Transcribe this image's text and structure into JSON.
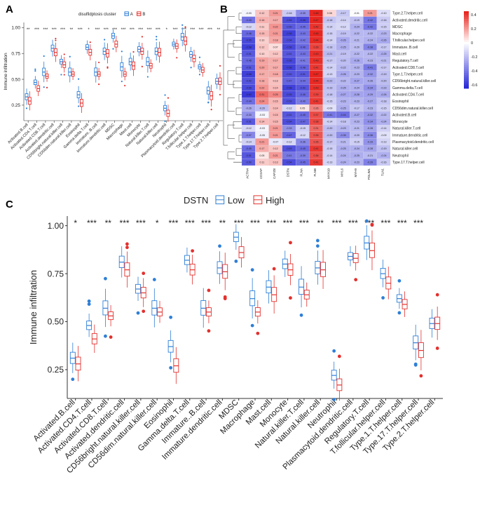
{
  "panels": {
    "a": {
      "letter": "A"
    },
    "b": {
      "letter": "B"
    },
    "c": {
      "letter": "C"
    }
  },
  "colors": {
    "blue": "#2f7fd6",
    "red": "#e2312e",
    "heat_low": "#2929d6",
    "heat_mid": "#ffffff",
    "heat_high": "#e8251f"
  },
  "chart_data": [
    {
      "type": "box",
      "panel": "A",
      "legend_title": "disulfidptosis cluster",
      "groups": [
        "A",
        "B"
      ],
      "ylabel": "Immune infiltration",
      "ylim": [
        0.1,
        1.05
      ],
      "yticks": [
        "0.25",
        "0.50",
        "0.75",
        "1.00"
      ],
      "categories": [
        "Activated.B.cell",
        "Activated.CD4.T.cell",
        "Activated.CD8.T.cell",
        "Activated.dendritic.cell",
        "CD56bright.natural.killer.cell",
        "CD56dim.natural.killer.cell",
        "Eosinophil",
        "Gamma.delta.T.cell",
        "Immature..B.cell",
        "Immature.dendritic.cell",
        "MDSC",
        "Macrophage",
        "Mast.cell",
        "Monocyte",
        "Natural.killer.T.cell",
        "Natural.killer.cell",
        "Neutrophil",
        "Plasmacytoid.dendritic.cell",
        "Regulatory.T.cell",
        "T.follicular.helper.cell",
        "Type.1.T.helper.cell",
        "Type.17.T.helper.cell",
        "Type.2.T.helper.cell"
      ],
      "significance": [
        "**",
        "***",
        "***",
        "***",
        "***",
        "**",
        "***",
        "*",
        "***",
        "***",
        "***",
        "***",
        "***",
        "***",
        "***",
        "***",
        "*",
        "***",
        "***",
        "***",
        "***",
        "***",
        "**"
      ],
      "series": [
        {
          "name": "A",
          "medians": [
            0.33,
            0.47,
            0.57,
            0.8,
            0.67,
            0.57,
            0.35,
            0.81,
            0.57,
            0.77,
            0.92,
            0.62,
            0.67,
            0.79,
            0.67,
            0.77,
            0.22,
            0.84,
            0.91,
            0.74,
            0.62,
            0.39,
            0.48
          ]
        },
        {
          "name": "B",
          "medians": [
            0.29,
            0.41,
            0.53,
            0.76,
            0.64,
            0.55,
            0.27,
            0.76,
            0.55,
            0.75,
            0.84,
            0.55,
            0.63,
            0.77,
            0.63,
            0.76,
            0.17,
            0.82,
            0.87,
            0.7,
            0.59,
            0.34,
            0.48
          ]
        }
      ]
    },
    {
      "type": "heatmap",
      "panel": "B",
      "x": [
        "ACTN4",
        "CD2AP",
        "CAPZB",
        "DSTN",
        "FLNA",
        "FLNB",
        "MYH10",
        "MYL6",
        "MYH9",
        "PDLIM1",
        "TLN1"
      ],
      "y": [
        "Type.2.T.helper.cell",
        "Activated.dendritic.cell",
        "MDSC",
        "Macrophage",
        "T.follicular.helper.cell",
        "Immature..B.cell",
        "Mast.cell",
        "Regulatory.T.cell",
        "Activated.CD8.T.cell",
        "Type.1.T.helper.cell",
        "CD56bright.natural.killer.cell",
        "Gamma.delta.T.cell",
        "Activated.CD4.T.cell",
        "Eosinophil",
        "CD56dim.natural.killer.cell",
        "Activated.B.cell",
        "Monocyte",
        "Natural.killer.T.cell",
        "Immature.dendritic.cell",
        "Plasmacytoid.dendritic.cell",
        "Natural.killer.cell",
        "Neutrophil",
        "Type.17.T.helper.cell"
      ],
      "values": [
        [
          -0.03,
          0.12,
          0.21,
          -0.16,
          -0.35,
          0.46,
          0.08,
          -0.17,
          -0.01,
          0.21,
          -0.1
        ],
        [
          -0.43,
          0.16,
          0.17,
          -0.54,
          -0.56,
          0.47,
          -0.18,
          -0.14,
          -0.19,
          -0.42,
          -0.16
        ],
        [
          -0.12,
          0.11,
          0.22,
          -0.5,
          -0.45,
          0.42,
          -0.14,
          -0.12,
          -0.24,
          -0.42,
          -0.15
        ],
        [
          -0.46,
          0.15,
          0.21,
          -0.58,
          -0.43,
          0.45,
          -0.15,
          -0.19,
          -0.22,
          -0.22,
          -0.23
        ],
        [
          -0.55,
          0.1,
          0.18,
          -0.54,
          -0.42,
          0.44,
          -0.14,
          -0.26,
          -0.21,
          -0.24,
          -0.26
        ],
        [
          -0.58,
          0.12,
          0.07,
          -0.56,
          -0.46,
          0.39,
          -0.18,
          -0.25,
          -0.2,
          -0.38,
          -0.17
        ],
        [
          -0.51,
          0.1,
          0.12,
          -0.51,
          -0.43,
          0.43,
          -0.21,
          -0.19,
          -0.22,
          -0.22,
          -0.25
        ],
        [
          -0.46,
          0.19,
          0.17,
          -0.56,
          -0.41,
          0.43,
          -0.17,
          -0.2,
          -0.26,
          -0.23,
          -0.21
        ],
        [
          -0.51,
          0.2,
          0.17,
          -0.58,
          -0.48,
          0.41,
          -0.14,
          -0.22,
          -0.23,
          -0.41,
          -0.17
        ],
        [
          -0.58,
          0.17,
          0.18,
          -0.52,
          -0.51,
          0.47,
          -0.13,
          -0.26,
          -0.23,
          -0.32,
          -0.19
        ],
        [
          -0.52,
          0.18,
          0.13,
          -0.47,
          -0.44,
          0.44,
          -0.22,
          -0.22,
          -0.27,
          -0.26,
          -0.2
        ],
        [
          -0.55,
          0.22,
          0.14,
          -0.58,
          -0.52,
          0.43,
          -0.19,
          -0.25,
          -0.24,
          -0.34,
          -0.23
        ],
        [
          -0.6,
          0.31,
          0.25,
          -0.55,
          -0.46,
          0.39,
          -0.18,
          -0.27,
          -0.28,
          -0.29,
          -0.26
        ],
        [
          -0.44,
          0.24,
          0.15,
          -0.53,
          -0.4,
          0.41,
          -0.15,
          -0.23,
          -0.23,
          -0.27,
          -0.18
        ],
        [
          -0.26,
          -0.2,
          0.14,
          -0.12,
          0.05,
          0.26,
          -0.09,
          -0.25,
          -0.17,
          -0.23,
          -0.15
        ],
        [
          -0.33,
          -0.03,
          0.15,
          -0.51,
          -0.45,
          0.37,
          -0.41,
          -0.44,
          -0.27,
          -0.32,
          -0.22
        ],
        [
          -0.51,
          0.14,
          0.15,
          -0.54,
          -0.47,
          0.38,
          -0.14,
          -0.18,
          -0.23,
          -0.34,
          -0.24
        ],
        [
          -0.12,
          -0.03,
          0.21,
          -0.33,
          -0.15,
          0.31,
          -0.2,
          -0.23,
          -0.21,
          -0.28,
          -0.14
        ],
        [
          -0.37,
          -0.05,
          0.21,
          -0.47,
          -0.12,
          0.35,
          -0.2,
          -0.35,
          -0.2,
          -0.36,
          -0.09
        ],
        [
          -0.14,
          0.21,
          -0.07,
          -0.12,
          -0.36,
          0.35,
          -0.17,
          -0.21,
          -0.15,
          -0.33,
          -0.13
        ],
        [
          -0.45,
          0.17,
          0.12,
          -0.53,
          -0.45,
          0.41,
          -0.15,
          -0.25,
          -0.24,
          -0.28,
          -0.19
        ],
        [
          -0.51,
          0.05,
          0.21,
          -0.41,
          -0.39,
          0.36,
          -0.14,
          -0.24,
          -0.25,
          -0.21,
          -0.24
        ],
        [
          -0.5,
          0.11,
          0.13,
          -0.54,
          -0.45,
          0.41,
          -0.13,
          -0.24,
          -0.23,
          -0.39,
          -0.16
        ]
      ],
      "colorbar_ticks": [
        "0.4",
        "0.2",
        "0",
        "-0.2",
        "-0.4",
        "-0.6"
      ],
      "colorbar_range": [
        -0.65,
        0.45
      ]
    },
    {
      "type": "box",
      "panel": "C",
      "legend_title": "DSTN",
      "groups": [
        "Low",
        "High"
      ],
      "ylabel": "Immune infiltration",
      "ylim": [
        0.1,
        1.05
      ],
      "yticks": [
        "0.25",
        "0.50",
        "0.75",
        "1.00"
      ],
      "categories": [
        "Activated.B.cell",
        "Activated.CD4.T.cell",
        "Activated.CD8.T.cell",
        "Activated.dendritic.cell",
        "CD56bright.natural.killer.cell",
        "CD56dim.natural.killer.cell",
        "Eosinophil",
        "Gamma.delta.T.cell",
        "Immature..B.cell",
        "Immature.dendritic.cell",
        "MDSC",
        "Macrophage",
        "Mast.cell",
        "Monocyte",
        "Natural.killer.T.cell",
        "Natural.killer.cell",
        "Neutrophil",
        "Plasmacytoid.dendritic.cell",
        "Regulatory.T.cell",
        "T.follicular.helper.cell",
        "Type.1.T.helper.cell",
        "Type.17.T.helper.cell",
        "Type.2.T.helper.cell"
      ],
      "significance": [
        "*",
        "***",
        "**",
        "***",
        "***",
        "*",
        "***",
        "***",
        "***",
        "**",
        "***",
        "***",
        "***",
        "***",
        "***",
        "**",
        "***",
        "***",
        "***",
        "***",
        "***",
        "***",
        ""
      ],
      "series": [
        {
          "name": "Low",
          "medians": [
            0.31,
            0.48,
            0.57,
            0.81,
            0.67,
            0.57,
            0.37,
            0.82,
            0.57,
            0.78,
            0.94,
            0.62,
            0.68,
            0.8,
            0.68,
            0.78,
            0.22,
            0.84,
            0.91,
            0.75,
            0.62,
            0.39,
            0.49
          ]
        },
        {
          "name": "High",
          "medians": [
            0.28,
            0.41,
            0.53,
            0.77,
            0.65,
            0.55,
            0.27,
            0.77,
            0.55,
            0.76,
            0.86,
            0.55,
            0.64,
            0.77,
            0.64,
            0.77,
            0.17,
            0.83,
            0.87,
            0.7,
            0.59,
            0.35,
            0.49
          ]
        }
      ]
    }
  ]
}
